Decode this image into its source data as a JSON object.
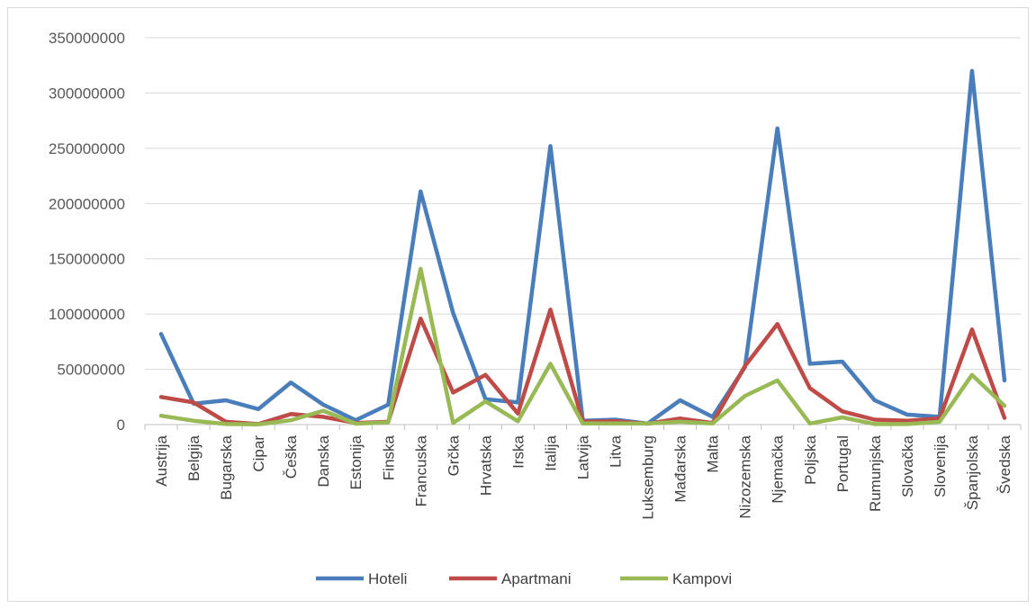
{
  "chart_data": {
    "type": "line",
    "title": "",
    "xlabel": "",
    "ylabel": "",
    "ylim": [
      0,
      350000000
    ],
    "yticks": [
      0,
      50000000,
      100000000,
      150000000,
      200000000,
      250000000,
      300000000,
      350000000
    ],
    "grid": "horizontal",
    "legend_position": "bottom",
    "categories": [
      "Austrija",
      "Belgija",
      "Bugarska",
      "Cipar",
      "Češka",
      "Danska",
      "Estonija",
      "Finska",
      "Francuska",
      "Grčka",
      "Hrvatska",
      "Irska",
      "Italija",
      "Latvija",
      "Litva",
      "Luksemburg",
      "Mađarska",
      "Malta",
      "Nizozemska",
      "Njemačka",
      "Poljska",
      "Portugal",
      "Rumunjska",
      "Slovačka",
      "Slovenija",
      "Španjolska",
      "Švedska"
    ],
    "series": [
      {
        "name": "Hoteli",
        "color": "#4a7ebb",
        "values": [
          82000000,
          19000000,
          22000000,
          14000000,
          38000000,
          18000000,
          4000000,
          18000000,
          211000000,
          101000000,
          23000000,
          20000000,
          252000000,
          3500000,
          4500000,
          1000000,
          22000000,
          7000000,
          52000000,
          268000000,
          55000000,
          57000000,
          22000000,
          9000000,
          7000000,
          320000000,
          40000000
        ]
      },
      {
        "name": "Apartmani",
        "color": "#be4b48",
        "values": [
          25000000,
          20000000,
          2500000,
          500000,
          9500000,
          7000000,
          1500000,
          2500000,
          96000000,
          29000000,
          45000000,
          10000000,
          104000000,
          2500000,
          3000000,
          800000,
          5500000,
          1500000,
          53000000,
          91000000,
          33000000,
          12000000,
          4500000,
          3500000,
          5500000,
          86000000,
          6000000
        ]
      },
      {
        "name": "Kampovi",
        "color": "#98b954",
        "values": [
          8000000,
          3500000,
          500000,
          200000,
          4000000,
          12500000,
          800000,
          2000000,
          141000000,
          1500000,
          21000000,
          3000000,
          55000000,
          1000000,
          1000000,
          1000000,
          2500000,
          1000000,
          26000000,
          40000000,
          1000000,
          6500000,
          500000,
          500000,
          2500000,
          45000000,
          17000000
        ]
      }
    ]
  }
}
